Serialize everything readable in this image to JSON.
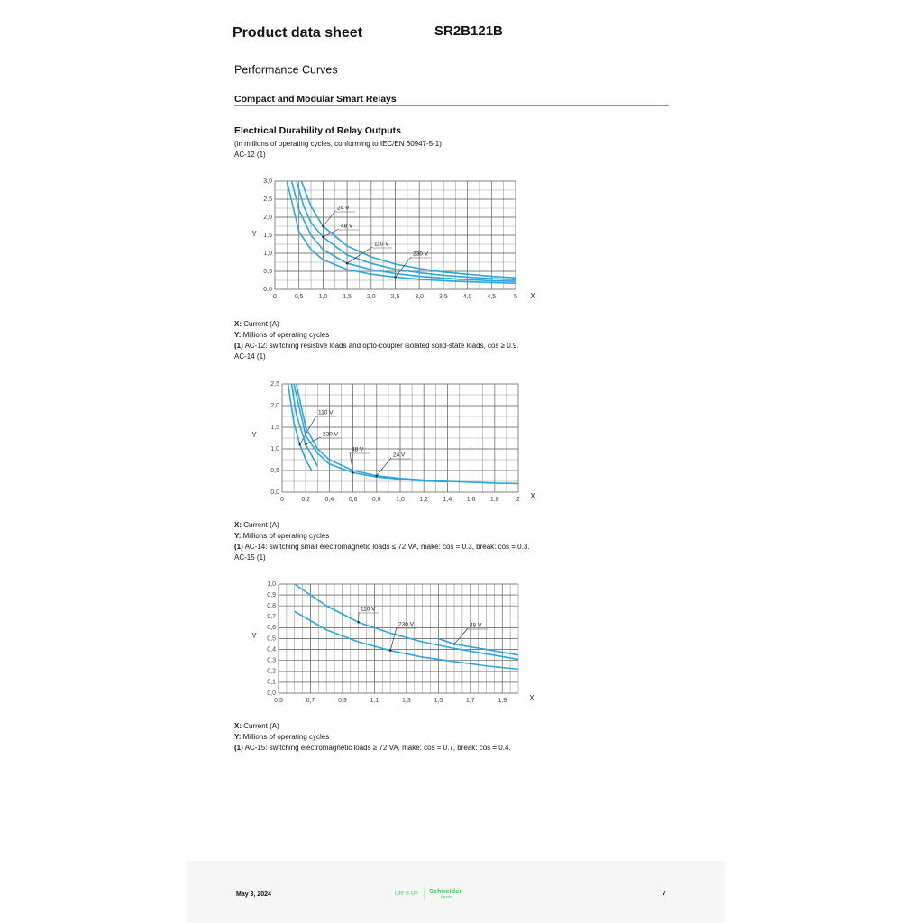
{
  "header": {
    "title": "Product data sheet",
    "product": "SR2B121B"
  },
  "page_heading": "Performance Curves",
  "section": "Compact and Modular Smart Relays",
  "subsection": {
    "title": "Electrical Durability of Relay Outputs",
    "note": "(in millions of operating cycles, conforming to IEC/EN 60947-5-1)"
  },
  "blocks": [
    {
      "heading": "AC-12 (1)",
      "legend": [
        [
          "X:",
          " Current (A)"
        ],
        [
          "Y:",
          " Millions of operating cycles"
        ],
        [
          "(1)",
          " AC-12: switching resistive loads and opto-coupler isolated solid-state loads, cos ≥ 0.9."
        ]
      ]
    },
    {
      "heading": "AC-14 (1)",
      "legend": [
        [
          "X:",
          " Current (A)"
        ],
        [
          "Y:",
          " Millions of operating cycles"
        ],
        [
          "(1)",
          " AC-14: switching small electromagnetic loads ≤ 72 VA, make: cos = 0.3, break: cos = 0.3."
        ]
      ]
    },
    {
      "heading": "AC-15 (1)",
      "legend": [
        [
          "X:",
          " Current (A)"
        ],
        [
          "Y:",
          " Millions of operating cycles"
        ],
        [
          "(1)",
          " AC-15: switching electromagnetic loads ≥ 72 VA, make: cos = 0.7, break: cos = 0.4."
        ]
      ]
    }
  ],
  "footer": {
    "date": "May 3, 2024",
    "slogan": "Life Is On",
    "brand": "Schneider",
    "brand_sub": "Electric",
    "page": "7"
  },
  "chart_data": [
    {
      "type": "line",
      "x_label": "X",
      "y_label": "Y",
      "grid": true,
      "xlim": [
        0,
        5
      ],
      "ylim": [
        0,
        3
      ],
      "xticks": [
        0,
        {
          "value": 0.5,
          "label": "0,5"
        },
        {
          "value": 1,
          "label": "1,0"
        },
        {
          "value": 1.5,
          "label": "1,5"
        },
        {
          "value": 2,
          "label": "2,0"
        },
        {
          "value": 2.5,
          "label": "2,5"
        },
        {
          "value": 3,
          "label": "3,0"
        },
        {
          "value": 3.5,
          "label": "3,5"
        },
        {
          "value": 4,
          "label": "4,0"
        },
        {
          "value": 4.5,
          "label": "4,5"
        },
        5
      ],
      "yticks": [
        {
          "value": 0,
          "label": "0,0"
        },
        {
          "value": 0.5,
          "label": "0,5"
        },
        {
          "value": 1,
          "label": "1,0"
        },
        {
          "value": 1.5,
          "label": "1,5"
        },
        {
          "value": 2,
          "label": "2,0"
        },
        {
          "value": 2.5,
          "label": "2,5"
        },
        {
          "value": 3,
          "label": "3,0"
        }
      ],
      "series": [
        {
          "name": "24 V",
          "color": "#29a8e0",
          "x": [
            0.55,
            0.75,
            1,
            1.5,
            2,
            2.5,
            3,
            3.5,
            4,
            4.5,
            5
          ],
          "values": [
            3.0,
            2.3,
            1.75,
            1.2,
            0.9,
            0.7,
            0.58,
            0.48,
            0.42,
            0.36,
            0.32
          ]
        },
        {
          "name": "48 V",
          "color": "#29a8e0",
          "x": [
            0.45,
            0.6,
            0.75,
            1,
            1.5,
            2,
            2.5,
            3,
            3.5,
            4,
            4.5,
            5
          ],
          "values": [
            3.0,
            2.3,
            1.85,
            1.45,
            0.95,
            0.72,
            0.56,
            0.46,
            0.39,
            0.34,
            0.3,
            0.27
          ]
        },
        {
          "name": "110 V",
          "color": "#29a8e0",
          "x": [
            0.35,
            0.5,
            0.75,
            1,
            1.5,
            2,
            2.5,
            3,
            3.5,
            4,
            4.5,
            5
          ],
          "values": [
            3.0,
            2.2,
            1.5,
            1.1,
            0.72,
            0.55,
            0.44,
            0.36,
            0.31,
            0.27,
            0.24,
            0.22
          ]
        },
        {
          "name": "230 V",
          "color": "#29a8e0",
          "x": [
            0.25,
            0.5,
            0.75,
            1,
            1.5,
            2,
            2.5,
            3,
            3.5,
            4,
            4.5,
            5
          ],
          "values": [
            3.0,
            1.6,
            1.1,
            0.82,
            0.55,
            0.42,
            0.34,
            0.28,
            0.24,
            0.21,
            0.19,
            0.17
          ]
        }
      ]
    },
    {
      "type": "line",
      "x_label": "X",
      "y_label": "Y",
      "grid": true,
      "xlim": [
        0,
        2
      ],
      "ylim": [
        0,
        2.5
      ],
      "xticks": [
        0,
        {
          "value": 0.2,
          "label": "0,2"
        },
        {
          "value": 0.4,
          "label": "0,4"
        },
        {
          "value": 0.6,
          "label": "0,6"
        },
        {
          "value": 0.8,
          "label": "0,8"
        },
        {
          "value": 1,
          "label": "1,0"
        },
        {
          "value": 1.2,
          "label": "1,2"
        },
        {
          "value": 1.4,
          "label": "1,4"
        },
        {
          "value": 1.6,
          "label": "1,6"
        },
        {
          "value": 1.8,
          "label": "1,8"
        },
        2
      ],
      "yticks": [
        {
          "value": 0,
          "label": "0,0"
        },
        {
          "value": 0.5,
          "label": "0,5"
        },
        {
          "value": 1,
          "label": "1,0"
        },
        {
          "value": 1.5,
          "label": "1,5"
        },
        {
          "value": 2,
          "label": "2,0"
        },
        {
          "value": 2.5,
          "label": "2,5"
        }
      ],
      "series": [
        {
          "name": "110 V",
          "color": "#29a8e0",
          "x": [
            0.05,
            0.1,
            0.15,
            0.2,
            0.25
          ],
          "values": [
            2.5,
            1.6,
            1.1,
            0.75,
            0.5
          ]
        },
        {
          "name": "230 V",
          "color": "#29a8e0",
          "x": [
            0.08,
            0.12,
            0.2,
            0.3
          ],
          "values": [
            2.5,
            1.8,
            1.1,
            0.6
          ]
        },
        {
          "name": "48 V",
          "color": "#29a8e0",
          "x": [
            0.1,
            0.2,
            0.3,
            0.4,
            0.6,
            0.8,
            1.0,
            1.2,
            1.4
          ],
          "values": [
            2.5,
            1.3,
            0.9,
            0.65,
            0.45,
            0.35,
            0.3,
            0.26,
            0.24
          ]
        },
        {
          "name": "24 V",
          "color": "#29a8e0",
          "x": [
            0.12,
            0.2,
            0.3,
            0.4,
            0.6,
            0.8,
            1.0,
            1.2,
            1.4,
            1.6,
            1.8,
            2
          ],
          "values": [
            2.5,
            1.5,
            1.0,
            0.75,
            0.5,
            0.38,
            0.32,
            0.28,
            0.25,
            0.23,
            0.21,
            0.2
          ]
        }
      ]
    },
    {
      "type": "line",
      "x_label": "X",
      "y_label": "Y",
      "grid": true,
      "xlim": [
        0.5,
        2.0
      ],
      "ylim": [
        0,
        1
      ],
      "xticks": [
        {
          "value": 0.5,
          "label": "0,5"
        },
        {
          "value": 0.7,
          "label": "0,7"
        },
        {
          "value": 0.9,
          "label": "0,9"
        },
        {
          "value": 1.1,
          "label": "1,1"
        },
        {
          "value": 1.3,
          "label": "1,3"
        },
        {
          "value": 1.5,
          "label": "1,5"
        },
        {
          "value": 1.7,
          "label": "1,7"
        },
        {
          "value": 1.9,
          "label": "1,9"
        }
      ],
      "yticks": [
        {
          "value": 0,
          "label": "0,0"
        },
        {
          "value": 0.1,
          "label": "0,1"
        },
        {
          "value": 0.2,
          "label": "0,2"
        },
        {
          "value": 0.3,
          "label": "0,3"
        },
        {
          "value": 0.4,
          "label": "0,4"
        },
        {
          "value": 0.5,
          "label": "0,5"
        },
        {
          "value": 0.6,
          "label": "0,6"
        },
        {
          "value": 0.7,
          "label": "0,7"
        },
        {
          "value": 0.8,
          "label": "0,8"
        },
        {
          "value": 0.9,
          "label": "0,9"
        },
        {
          "value": 1,
          "label": "1,0"
        }
      ],
      "series": [
        {
          "name": "110 V",
          "color": "#29a8e0",
          "x": [
            0.6,
            0.8,
            1.0,
            1.2,
            1.4,
            1.6,
            1.8,
            2.0
          ],
          "values": [
            1.0,
            0.8,
            0.65,
            0.55,
            0.47,
            0.41,
            0.36,
            0.31
          ]
        },
        {
          "name": "230 V",
          "color": "#29a8e0",
          "x": [
            0.6,
            0.8,
            1.0,
            1.2,
            1.4,
            1.6,
            1.8,
            2.0
          ],
          "values": [
            0.75,
            0.58,
            0.47,
            0.39,
            0.33,
            0.29,
            0.25,
            0.22
          ]
        },
        {
          "name": "48 V",
          "color": "#29a8e0",
          "x": [
            1.5,
            1.6,
            1.8,
            2.0
          ],
          "values": [
            0.5,
            0.45,
            0.4,
            0.35
          ]
        }
      ]
    }
  ]
}
